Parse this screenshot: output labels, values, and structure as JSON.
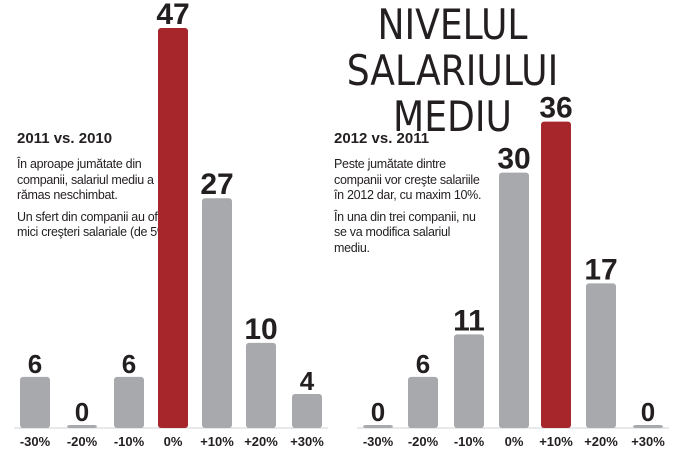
{
  "title_line1": "NIVELUL SALARIULUI",
  "title_line2": "MEDIU",
  "panels": [
    {
      "subtitle": "2011 vs. 2010",
      "paragraphs": [
        "În aproape jumătate din companii, salariul mediu a rămas neschimbat.",
        "Un sfert din companii au oferit mici creşteri salariale (de 5%)."
      ]
    },
    {
      "subtitle": "2012 vs. 2011",
      "paragraphs": [
        "Peste jumătate dintre companii vor creşte salariile în 2012 dar, cu maxim 10%.",
        "În una din trei companii, nu se va modifica salariul mediu."
      ]
    }
  ],
  "colors": {
    "bar_default": "#a7a9ac",
    "bar_highlight": "#a6262b",
    "text": "#231f20"
  },
  "chart_data": [
    {
      "type": "bar",
      "title": "2011 vs. 2010",
      "categories": [
        "-30%",
        "-20%",
        "-10%",
        "0%",
        "+10%",
        "+20%",
        "+30%"
      ],
      "values": [
        6,
        0,
        6,
        47,
        27,
        10,
        4
      ],
      "highlight_index": 3,
      "ylim": [
        0,
        47
      ]
    },
    {
      "type": "bar",
      "title": "2012 vs. 2011",
      "categories": [
        "-30%",
        "-20%",
        "-10%",
        "0%",
        "+10%",
        "+20%",
        "+30%"
      ],
      "values": [
        0,
        6,
        11,
        30,
        36,
        17,
        0
      ],
      "highlight_index": 4,
      "ylim": [
        0,
        47
      ]
    }
  ]
}
